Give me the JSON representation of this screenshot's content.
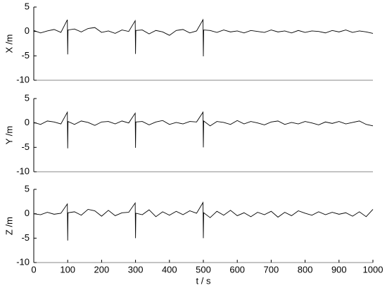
{
  "chart_data": [
    {
      "type": "line",
      "ylabel": "X /m",
      "color": "#000000",
      "xlim": [
        0,
        1000
      ],
      "ylim": [
        -10,
        5
      ],
      "yticks": [
        -10,
        -5,
        0,
        5
      ],
      "x": [
        0,
        20,
        40,
        60,
        80,
        99,
        100,
        101,
        120,
        140,
        160,
        180,
        200,
        220,
        240,
        260,
        280,
        299,
        300,
        301,
        320,
        340,
        360,
        380,
        400,
        420,
        440,
        460,
        480,
        499,
        500,
        501,
        520,
        540,
        560,
        580,
        600,
        620,
        640,
        660,
        680,
        700,
        720,
        740,
        760,
        780,
        800,
        820,
        840,
        860,
        880,
        900,
        920,
        940,
        960,
        980,
        1000
      ],
      "values": [
        0.2,
        -0.3,
        0.1,
        0.4,
        -0.2,
        2.4,
        -4.7,
        0.3,
        0.5,
        -0.1,
        0.6,
        0.8,
        -0.2,
        0.1,
        -0.4,
        0.3,
        0.0,
        2.2,
        -4.6,
        0.2,
        0.3,
        -0.5,
        0.2,
        -0.1,
        -0.8,
        0.2,
        0.4,
        -0.3,
        0.1,
        2.4,
        -5.1,
        0.3,
        0.2,
        -0.2,
        0.3,
        -0.1,
        0.1,
        -0.3,
        0.2,
        0.0,
        -0.2,
        0.3,
        -0.1,
        0.1,
        -0.3,
        0.2,
        -0.2,
        0.1,
        0.0,
        -0.3,
        0.2,
        -0.1,
        0.3,
        -0.2,
        0.1,
        -0.1,
        -0.4
      ]
    },
    {
      "type": "line",
      "ylabel": "Y /m",
      "color": "#000000",
      "xlim": [
        0,
        1000
      ],
      "ylim": [
        -10,
        5
      ],
      "yticks": [
        -10,
        -5,
        0,
        5
      ],
      "x": [
        0,
        20,
        40,
        60,
        80,
        99,
        100,
        101,
        120,
        140,
        160,
        180,
        200,
        220,
        240,
        260,
        280,
        299,
        300,
        301,
        320,
        340,
        360,
        380,
        400,
        420,
        440,
        460,
        480,
        499,
        500,
        501,
        520,
        540,
        560,
        580,
        600,
        620,
        640,
        660,
        680,
        700,
        720,
        740,
        760,
        780,
        800,
        820,
        840,
        860,
        880,
        900,
        920,
        940,
        960,
        980,
        1000
      ],
      "values": [
        0.1,
        -0.3,
        0.4,
        0.2,
        -0.2,
        2.2,
        -5.2,
        0.3,
        -0.3,
        0.4,
        0.1,
        -0.5,
        0.2,
        0.3,
        -0.2,
        0.4,
        0.0,
        2.0,
        -5.1,
        0.2,
        0.3,
        -0.4,
        0.2,
        0.5,
        -0.3,
        0.1,
        -0.2,
        0.3,
        0.2,
        2.2,
        -5.0,
        0.4,
        -0.6,
        0.3,
        0.1,
        -0.3,
        0.5,
        -0.2,
        0.3,
        0.0,
        -0.4,
        0.2,
        0.4,
        -0.3,
        0.1,
        -0.2,
        0.3,
        0.0,
        -0.4,
        0.2,
        -0.1,
        0.3,
        -0.2,
        0.1,
        0.4,
        -0.3,
        -0.6
      ]
    },
    {
      "type": "line",
      "ylabel": "Z /m",
      "xlabel": "t / s",
      "color": "#000000",
      "xlim": [
        0,
        1000
      ],
      "ylim": [
        -10,
        5
      ],
      "yticks": [
        -10,
        -5,
        0,
        5
      ],
      "xticks": [
        0,
        100,
        200,
        300,
        400,
        500,
        600,
        700,
        800,
        900,
        1000
      ],
      "x": [
        0,
        20,
        40,
        60,
        80,
        99,
        100,
        101,
        120,
        140,
        160,
        180,
        200,
        220,
        240,
        260,
        280,
        299,
        300,
        301,
        320,
        340,
        360,
        380,
        400,
        420,
        440,
        460,
        480,
        499,
        500,
        501,
        520,
        540,
        560,
        580,
        600,
        620,
        640,
        660,
        680,
        700,
        720,
        740,
        760,
        780,
        800,
        820,
        840,
        860,
        880,
        900,
        920,
        940,
        960,
        980,
        1000
      ],
      "values": [
        0.0,
        -0.2,
        0.3,
        -0.1,
        0.1,
        2.0,
        -5.5,
        0.2,
        0.4,
        -0.3,
        0.9,
        0.6,
        -0.5,
        0.7,
        -0.4,
        0.2,
        0.3,
        2.2,
        -5.0,
        0.1,
        -0.2,
        0.8,
        -0.6,
        0.4,
        -0.3,
        0.5,
        -0.2,
        0.6,
        0.1,
        2.3,
        -5.0,
        0.2,
        -0.8,
        0.5,
        -0.3,
        0.7,
        -0.4,
        0.2,
        -0.6,
        0.3,
        -0.2,
        0.5,
        -0.7,
        0.3,
        -0.4,
        0.6,
        0.1,
        -0.3,
        0.4,
        -0.2,
        0.3,
        -0.1,
        0.2,
        -0.5,
        0.4,
        -0.6,
        0.9
      ]
    }
  ]
}
